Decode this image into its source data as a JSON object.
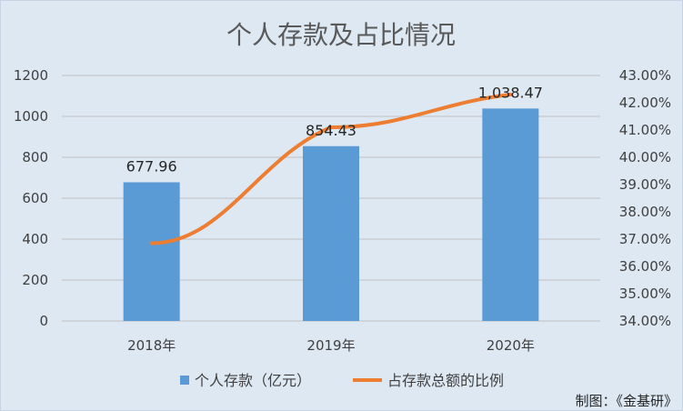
{
  "chart_data": {
    "type": "bar+line",
    "title": "个人存款及占比情况",
    "categories": [
      "2018年",
      "2019年",
      "2020年"
    ],
    "series": [
      {
        "name": "个人存款（亿元）",
        "kind": "bar",
        "axis": "left",
        "values": [
          677.96,
          854.43,
          1038.47
        ],
        "labels": [
          "677.96",
          "854.43",
          "1,038.47"
        ],
        "color": "#5b9bd5"
      },
      {
        "name": "占存款总额的比例",
        "kind": "line",
        "axis": "right",
        "values": [
          36.85,
          41.1,
          42.3
        ],
        "color": "#ed7d31"
      }
    ],
    "y_left": {
      "min": 0,
      "max": 1200,
      "ticks": [
        "0",
        "200",
        "400",
        "600",
        "800",
        "1000",
        "1200"
      ]
    },
    "y_right": {
      "min": 34,
      "max": 43,
      "ticks": [
        "34.00%",
        "35.00%",
        "36.00%",
        "37.00%",
        "38.00%",
        "39.00%",
        "40.00%",
        "41.00%",
        "42.00%",
        "43.00%"
      ]
    },
    "grid": true,
    "legend": "bottom"
  },
  "credit": "制图：《金基研》"
}
